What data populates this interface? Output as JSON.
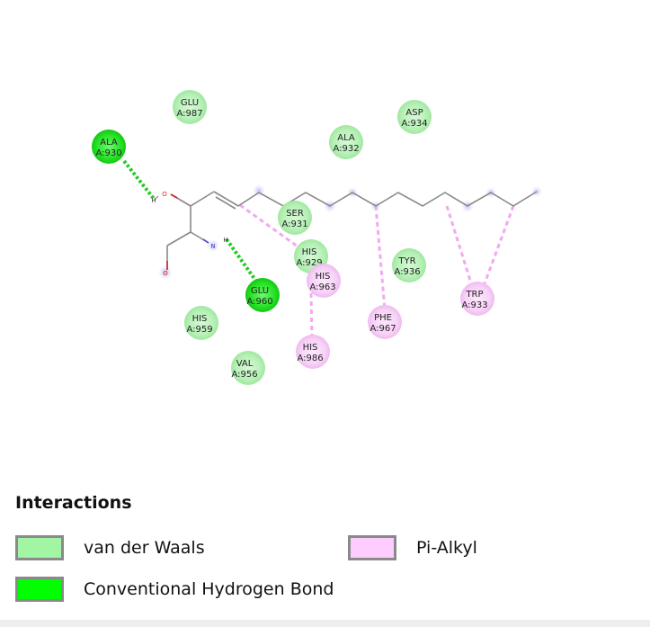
{
  "residues": [
    {
      "id": "ala930",
      "name": "ALA",
      "chain": "A:930",
      "type": "hbond"
    },
    {
      "id": "glu987",
      "name": "GLU",
      "chain": "A:987",
      "type": "vdw"
    },
    {
      "id": "ala932",
      "name": "ALA",
      "chain": "A:932",
      "type": "vdw"
    },
    {
      "id": "asp934",
      "name": "ASP",
      "chain": "A:934",
      "type": "vdw"
    },
    {
      "id": "ser931",
      "name": "SER",
      "chain": "A:931",
      "type": "vdw"
    },
    {
      "id": "his929",
      "name": "HIS",
      "chain": "A:929",
      "type": "vdw"
    },
    {
      "id": "his963",
      "name": "HIS",
      "chain": "A:963",
      "type": "pialkyl"
    },
    {
      "id": "tyr936",
      "name": "TYR",
      "chain": "A:936",
      "type": "vdw"
    },
    {
      "id": "trp933",
      "name": "TRP",
      "chain": "A:933",
      "type": "pialkyl"
    },
    {
      "id": "glu960",
      "name": "GLU",
      "chain": "A:960",
      "type": "hbond"
    },
    {
      "id": "his959",
      "name": "HIS",
      "chain": "A:959",
      "type": "vdw"
    },
    {
      "id": "phe967",
      "name": "PHE",
      "chain": "A:967",
      "type": "pialkyl"
    },
    {
      "id": "his986",
      "name": "HIS",
      "chain": "A:986",
      "type": "pialkyl"
    },
    {
      "id": "val956",
      "name": "VAL",
      "chain": "A:956",
      "type": "vdw"
    }
  ],
  "atoms": {
    "o1": "O",
    "h1": "H",
    "n1": "N",
    "h2": "H",
    "o2": "O"
  },
  "legend": {
    "title": "Interactions",
    "items": [
      {
        "label": "van der Waals",
        "color": "#a2f5a2"
      },
      {
        "label": "Pi-Alkyl",
        "color": "#ffccff"
      },
      {
        "label": "Conventional Hydrogen Bond",
        "color": "#00ff00"
      }
    ]
  },
  "colors": {
    "vdw": "#b6f2b6",
    "hbond": "#1de61d",
    "pialkyl": "#f7cff7",
    "hbond_line": "#22cc22",
    "pialkyl_line": "#f2a8f2",
    "ligand": "#888888"
  }
}
